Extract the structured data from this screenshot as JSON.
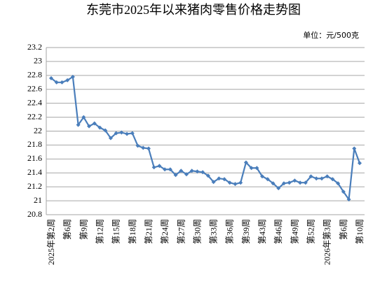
{
  "chart_data": {
    "type": "line",
    "title": "东莞市2025年以来猪肉零售价格走势图",
    "unit_label": "单位：元/500克",
    "categories": [
      "2025年第2周",
      null,
      null,
      "第6周",
      null,
      null,
      "第9周",
      null,
      null,
      "第12周",
      null,
      null,
      "第15周",
      null,
      null,
      "第18周",
      null,
      null,
      "第21周",
      null,
      null,
      "第24周",
      null,
      null,
      "第27周",
      null,
      null,
      "第30周",
      null,
      null,
      "第33周",
      null,
      null,
      "第36周",
      null,
      null,
      "第39周",
      null,
      null,
      "第43周",
      null,
      null,
      "第46周",
      null,
      null,
      "第49周",
      null,
      null,
      "第52周",
      null,
      null,
      "2026年第3周",
      null,
      null,
      "第6周",
      null,
      null,
      "第10周"
    ],
    "values": [
      22.76,
      22.7,
      22.7,
      22.73,
      22.78,
      22.09,
      22.2,
      22.07,
      22.11,
      22.05,
      22.01,
      21.9,
      21.97,
      21.98,
      21.96,
      21.97,
      21.79,
      21.76,
      21.75,
      21.48,
      21.5,
      21.45,
      21.45,
      21.37,
      21.43,
      21.38,
      21.43,
      21.42,
      21.41,
      21.36,
      21.27,
      21.32,
      21.31,
      21.26,
      21.24,
      21.26,
      21.55,
      21.47,
      21.47,
      21.35,
      21.31,
      21.25,
      21.18,
      21.25,
      21.26,
      21.29,
      21.26,
      21.26,
      21.35,
      21.32,
      21.32,
      21.35,
      21.31,
      21.25,
      21.13,
      21.02,
      21.75,
      21.54
    ],
    "color": "#4a7ebb",
    "ylim": [
      20.8,
      23.2
    ],
    "yticks": [
      20.8,
      21,
      21.2,
      21.4,
      21.6,
      21.8,
      22,
      22.2,
      22.4,
      22.6,
      22.8,
      23,
      23.2
    ],
    "grid": true
  }
}
